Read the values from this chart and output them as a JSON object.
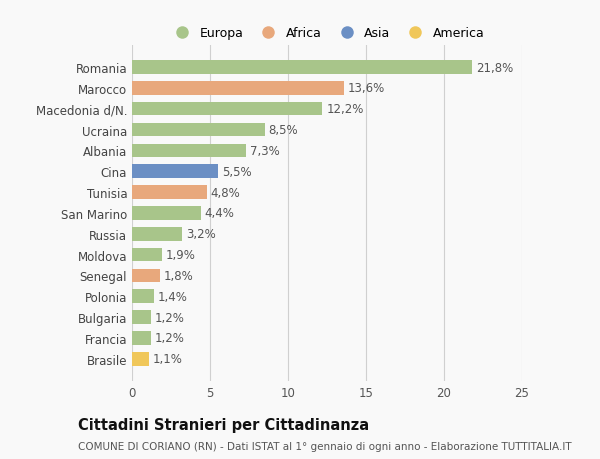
{
  "countries": [
    "Romania",
    "Marocco",
    "Macedonia d/N.",
    "Ucraina",
    "Albania",
    "Cina",
    "Tunisia",
    "San Marino",
    "Russia",
    "Moldova",
    "Senegal",
    "Polonia",
    "Bulgaria",
    "Francia",
    "Brasile"
  ],
  "values": [
    21.8,
    13.6,
    12.2,
    8.5,
    7.3,
    5.5,
    4.8,
    4.4,
    3.2,
    1.9,
    1.8,
    1.4,
    1.2,
    1.2,
    1.1
  ],
  "labels": [
    "21,8%",
    "13,6%",
    "12,2%",
    "8,5%",
    "7,3%",
    "5,5%",
    "4,8%",
    "4,4%",
    "3,2%",
    "1,9%",
    "1,8%",
    "1,4%",
    "1,2%",
    "1,2%",
    "1,1%"
  ],
  "continents": [
    "Europa",
    "Africa",
    "Europa",
    "Europa",
    "Europa",
    "Asia",
    "Africa",
    "Europa",
    "Europa",
    "Europa",
    "Africa",
    "Europa",
    "Europa",
    "Europa",
    "America"
  ],
  "colors": {
    "Europa": "#a8c58a",
    "Africa": "#e8a87c",
    "Asia": "#6b8fc4",
    "America": "#f0c75a"
  },
  "legend_order": [
    "Europa",
    "Africa",
    "Asia",
    "America"
  ],
  "legend_colors": [
    "#a8c58a",
    "#e8a87c",
    "#6b8fc4",
    "#f0c75a"
  ],
  "xlim": [
    0,
    25
  ],
  "xticks": [
    0,
    5,
    10,
    15,
    20,
    25
  ],
  "title": "Cittadini Stranieri per Cittadinanza",
  "subtitle": "COMUNE DI CORIANO (RN) - Dati ISTAT al 1° gennaio di ogni anno - Elaborazione TUTTITALIA.IT",
  "bg_color": "#f9f9f9",
  "grid_color": "#d0d0d0",
  "bar_height": 0.65,
  "label_fontsize": 8.5,
  "tick_fontsize": 8.5,
  "title_fontsize": 10.5,
  "subtitle_fontsize": 7.5
}
